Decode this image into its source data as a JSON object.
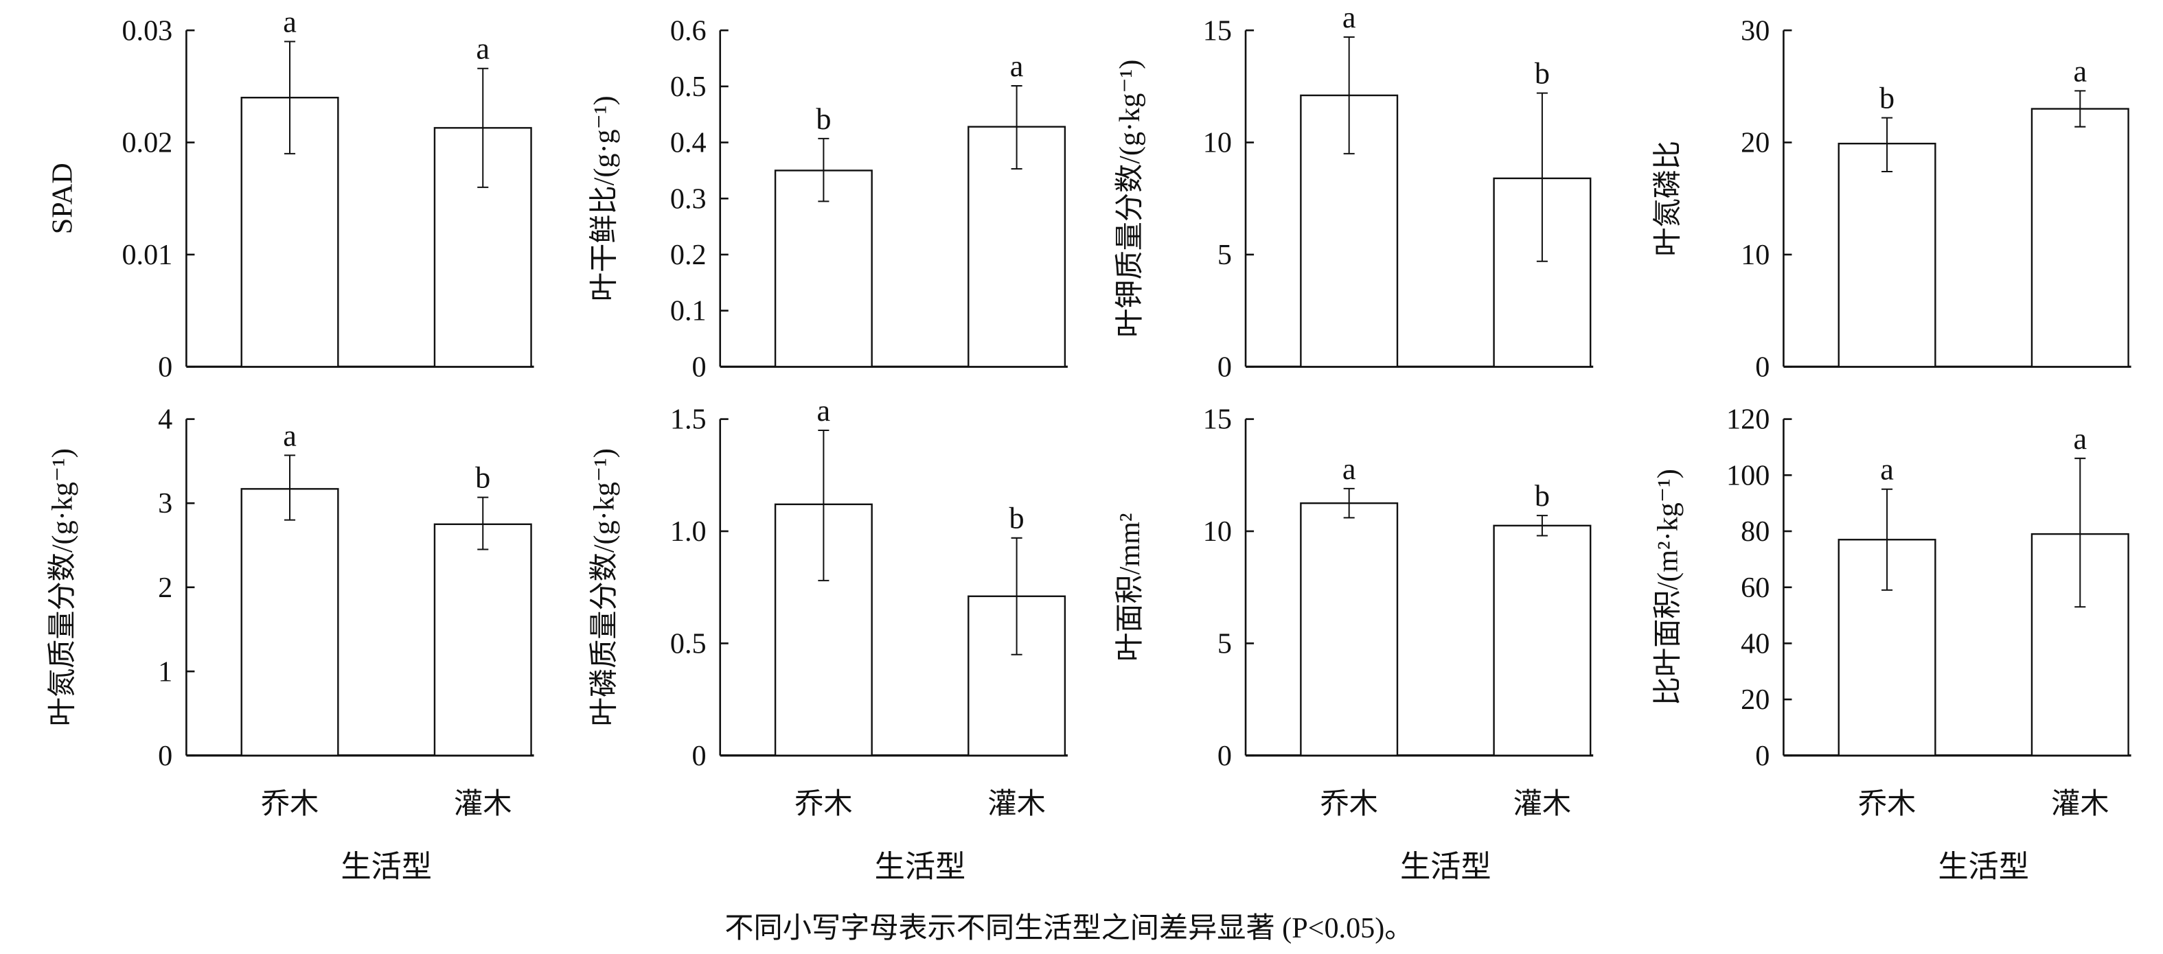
{
  "chart_data": [
    {
      "type": "bar",
      "ylabel": "SPAD",
      "ylim": [
        0,
        0.03
      ],
      "ticks": [
        "0",
        "0.01",
        "0.02",
        "0.03"
      ],
      "tick_values": [
        0,
        0.01,
        0.02,
        0.03
      ],
      "categories": [
        "乔木",
        "灌木"
      ],
      "values": [
        0.024,
        0.0213
      ],
      "error_low": [
        0.019,
        0.016
      ],
      "error_high": [
        0.029,
        0.0266
      ],
      "letters": [
        "a",
        "a"
      ]
    },
    {
      "type": "bar",
      "ylabel": "叶干鲜比/(g·g⁻¹)",
      "ylim": [
        0,
        0.6
      ],
      "ticks": [
        "0",
        "0.1",
        "0.2",
        "0.3",
        "0.4",
        "0.5",
        "0.6"
      ],
      "tick_values": [
        0,
        0.1,
        0.2,
        0.3,
        0.4,
        0.5,
        0.6
      ],
      "categories": [
        "乔木",
        "灌木"
      ],
      "values": [
        0.35,
        0.428
      ],
      "error_low": [
        0.295,
        0.353
      ],
      "error_high": [
        0.407,
        0.501
      ],
      "letters": [
        "b",
        "a"
      ]
    },
    {
      "type": "bar",
      "ylabel": "叶钾质量分数/(g·kg⁻¹)",
      "ylim": [
        0,
        15
      ],
      "ticks": [
        "0",
        "5",
        "10",
        "15"
      ],
      "tick_values": [
        0,
        5,
        10,
        15
      ],
      "categories": [
        "乔木",
        "灌木"
      ],
      "values": [
        12.1,
        8.4
      ],
      "error_low": [
        9.5,
        4.7
      ],
      "error_high": [
        14.7,
        12.2
      ],
      "letters": [
        "a",
        "b"
      ]
    },
    {
      "type": "bar",
      "ylabel": "叶氮磷比",
      "ylim": [
        0,
        30
      ],
      "ticks": [
        "0",
        "10",
        "20",
        "30"
      ],
      "tick_values": [
        0,
        10,
        20,
        30
      ],
      "categories": [
        "乔木",
        "灌木"
      ],
      "values": [
        19.9,
        23.0
      ],
      "error_low": [
        17.4,
        21.4
      ],
      "error_high": [
        22.2,
        24.6
      ],
      "letters": [
        "b",
        "a"
      ]
    },
    {
      "type": "bar",
      "ylabel": "叶氮质量分数/(g·kg⁻¹)",
      "ylim": [
        0,
        4
      ],
      "ticks": [
        "0",
        "1",
        "2",
        "3",
        "4"
      ],
      "tick_values": [
        0,
        1,
        2,
        3,
        4
      ],
      "categories": [
        "乔木",
        "灌木"
      ],
      "values": [
        3.17,
        2.75
      ],
      "error_low": [
        2.8,
        2.45
      ],
      "error_high": [
        3.57,
        3.07
      ],
      "letters": [
        "a",
        "b"
      ],
      "xlabel": "生活型"
    },
    {
      "type": "bar",
      "ylabel": "叶磷质量分数/(g·kg⁻¹)",
      "ylim": [
        0,
        1.5
      ],
      "ticks": [
        "0",
        "0.5",
        "1.0",
        "1.5"
      ],
      "tick_values": [
        0,
        0.5,
        1.0,
        1.5
      ],
      "categories": [
        "乔木",
        "灌木"
      ],
      "values": [
        1.12,
        0.71
      ],
      "error_low": [
        0.78,
        0.45
      ],
      "error_high": [
        1.45,
        0.97
      ],
      "letters": [
        "a",
        "b"
      ],
      "xlabel": "生活型"
    },
    {
      "type": "bar",
      "ylabel": "叶面积/mm²",
      "ylim": [
        0,
        15
      ],
      "ticks": [
        "0",
        "5",
        "10",
        "15"
      ],
      "tick_values": [
        0,
        5,
        10,
        15
      ],
      "categories": [
        "乔木",
        "灌木"
      ],
      "values": [
        11.25,
        10.25
      ],
      "error_low": [
        10.6,
        9.8
      ],
      "error_high": [
        11.9,
        10.7
      ],
      "letters": [
        "a",
        "b"
      ],
      "xlabel": "生活型"
    },
    {
      "type": "bar",
      "ylabel": "比叶面积/(m²·kg⁻¹)",
      "ylim": [
        0,
        120
      ],
      "ticks": [
        "0",
        "20",
        "40",
        "60",
        "80",
        "100",
        "120"
      ],
      "tick_values": [
        0,
        20,
        40,
        60,
        80,
        100,
        120
      ],
      "categories": [
        "乔木",
        "灌木"
      ],
      "values": [
        77,
        79
      ],
      "error_low": [
        59,
        53
      ],
      "error_high": [
        95,
        106
      ],
      "letters": [
        "a",
        "a"
      ],
      "xlabel": "生活型"
    }
  ],
  "footnote": "不同小写字母表示不同生活型之间差异显著 (P<0.05)。",
  "colors": {
    "bar_fill": "#ffffff",
    "stroke": "#111111"
  }
}
